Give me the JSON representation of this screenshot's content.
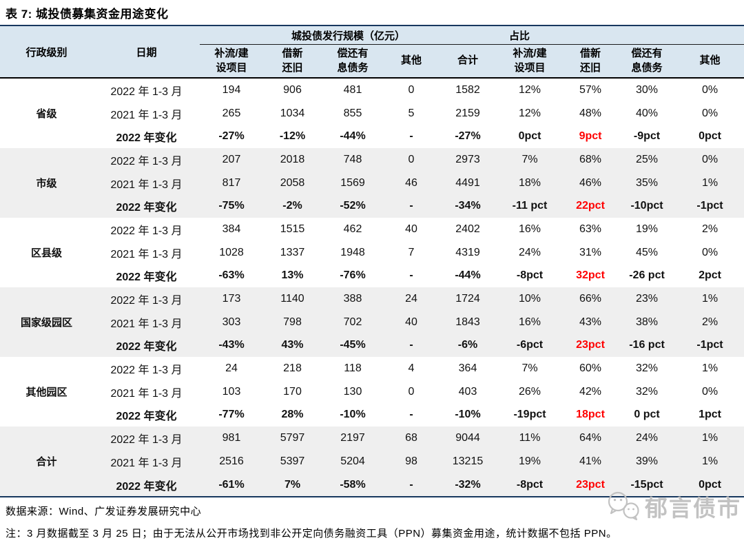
{
  "title": "表 7: 城投债募集资金用途变化",
  "table": {
    "group_headers": [
      {
        "label": "城投债发行规模（亿元）",
        "span": 5
      },
      {
        "label": "占比",
        "span": 4
      }
    ],
    "columns": [
      "行政级别",
      "日期",
      "补流/建\n设项目",
      "借新\n还旧",
      "偿还有\n息债务",
      "其他",
      "合计",
      "补流/建\n设项目",
      "借新\n还旧",
      "偿还有\n息债务",
      "其他"
    ],
    "groups": [
      {
        "level": "省级",
        "rows": [
          {
            "date": "2022 年 1-3 月",
            "bold": false,
            "values": [
              "194",
              "906",
              "481",
              "0",
              "1582",
              "12%",
              "57%",
              "30%",
              "0%"
            ]
          },
          {
            "date": "2021 年 1-3 月",
            "bold": false,
            "values": [
              "265",
              "1034",
              "855",
              "5",
              "2159",
              "12%",
              "48%",
              "40%",
              "0%"
            ]
          },
          {
            "date": "2022 年变化",
            "bold": true,
            "red": [
              6
            ],
            "values": [
              "-27%",
              "-12%",
              "-44%",
              "-",
              "-27%",
              "0pct",
              "9pct",
              "-9pct",
              "0pct"
            ]
          }
        ]
      },
      {
        "level": "市级",
        "rows": [
          {
            "date": "2022 年 1-3 月",
            "bold": false,
            "values": [
              "207",
              "2018",
              "748",
              "0",
              "2973",
              "7%",
              "68%",
              "25%",
              "0%"
            ]
          },
          {
            "date": "2021 年 1-3 月",
            "bold": false,
            "values": [
              "817",
              "2058",
              "1569",
              "46",
              "4491",
              "18%",
              "46%",
              "35%",
              "1%"
            ]
          },
          {
            "date": "2022 年变化",
            "bold": true,
            "red": [
              6
            ],
            "values": [
              "-75%",
              "-2%",
              "-52%",
              "-",
              "-34%",
              "-11 pct",
              "22pct",
              "-10pct",
              "-1pct"
            ]
          }
        ]
      },
      {
        "level": "区县级",
        "rows": [
          {
            "date": "2022 年 1-3 月",
            "bold": false,
            "values": [
              "384",
              "1515",
              "462",
              "40",
              "2402",
              "16%",
              "63%",
              "19%",
              "2%"
            ]
          },
          {
            "date": "2021 年 1-3 月",
            "bold": false,
            "values": [
              "1028",
              "1337",
              "1948",
              "7",
              "4319",
              "24%",
              "31%",
              "45%",
              "0%"
            ]
          },
          {
            "date": "2022 年变化",
            "bold": true,
            "red": [
              6
            ],
            "values": [
              "-63%",
              "13%",
              "-76%",
              "-",
              "-44%",
              "-8pct",
              "32pct",
              "-26 pct",
              "2pct"
            ]
          }
        ]
      },
      {
        "level": "国家级园区",
        "rows": [
          {
            "date": "2022 年 1-3 月",
            "bold": false,
            "values": [
              "173",
              "1140",
              "388",
              "24",
              "1724",
              "10%",
              "66%",
              "23%",
              "1%"
            ]
          },
          {
            "date": "2021 年 1-3 月",
            "bold": false,
            "values": [
              "303",
              "798",
              "702",
              "40",
              "1843",
              "16%",
              "43%",
              "38%",
              "2%"
            ]
          },
          {
            "date": "2022 年变化",
            "bold": true,
            "red": [
              6
            ],
            "values": [
              "-43%",
              "43%",
              "-45%",
              "-",
              "-6%",
              "-6pct",
              "23pct",
              "-16 pct",
              "-1pct"
            ]
          }
        ]
      },
      {
        "level": "其他园区",
        "rows": [
          {
            "date": "2022 年 1-3 月",
            "bold": false,
            "values": [
              "24",
              "218",
              "118",
              "4",
              "364",
              "7%",
              "60%",
              "32%",
              "1%"
            ]
          },
          {
            "date": "2021 年 1-3 月",
            "bold": false,
            "values": [
              "103",
              "170",
              "130",
              "0",
              "403",
              "26%",
              "42%",
              "32%",
              "0%"
            ]
          },
          {
            "date": "2022 年变化",
            "bold": true,
            "red": [
              6
            ],
            "values": [
              "-77%",
              "28%",
              "-10%",
              "-",
              "-10%",
              "-19pct",
              "18pct",
              "0 pct",
              "1pct"
            ]
          }
        ]
      },
      {
        "level": "合计",
        "rows": [
          {
            "date": "2022 年 1-3 月",
            "bold": false,
            "values": [
              "981",
              "5797",
              "2197",
              "68",
              "9044",
              "11%",
              "64%",
              "24%",
              "1%"
            ]
          },
          {
            "date": "2021 年 1-3 月",
            "bold": false,
            "values": [
              "2516",
              "5397",
              "5204",
              "98",
              "13215",
              "19%",
              "41%",
              "39%",
              "1%"
            ]
          },
          {
            "date": "2022 年变化",
            "bold": true,
            "red": [
              6
            ],
            "values": [
              "-61%",
              "7%",
              "-58%",
              "-",
              "-32%",
              "-8pct",
              "23pct",
              "-15pct",
              "0pct"
            ]
          }
        ]
      }
    ]
  },
  "footer": {
    "source": "数据来源：Wind、广发证券发展研究中心",
    "note": "注：3 月数据截至 3 月 25 日；由于无法从公开市场找到非公开定向债务融资工具（PPN）募集资金用途，统计数据不包括 PPN。",
    "watermark": "郁言债市"
  },
  "colors": {
    "header_background": "#d9e6f0",
    "group_band_background": "#efefef",
    "border_navy": "#17375e",
    "highlight_red": "#ff0000"
  }
}
